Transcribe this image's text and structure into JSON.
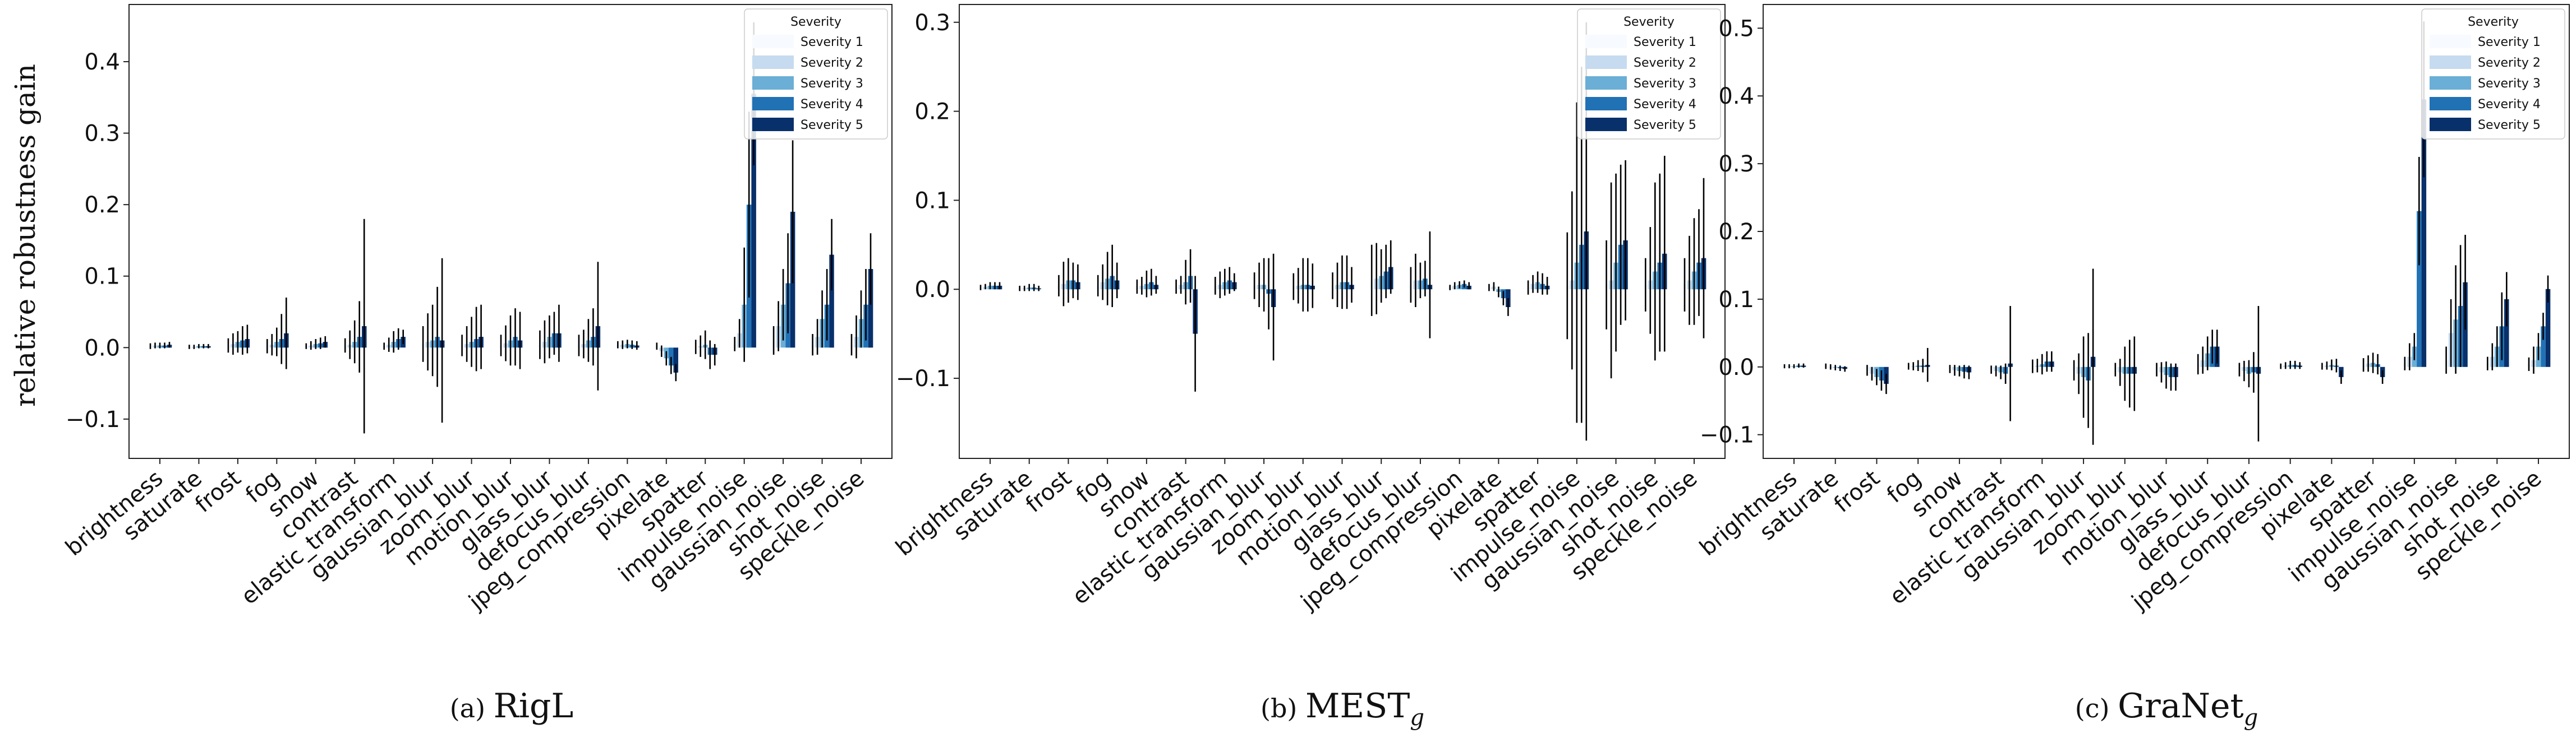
{
  "figure": {
    "ylabel": "relative robustness gain",
    "legend_title": "Severity",
    "severity_labels": [
      "Severity 1",
      "Severity 2",
      "Severity 3",
      "Severity 4",
      "Severity 5"
    ],
    "severity_colors": [
      "#f7fbff",
      "#c6dbef",
      "#6baed6",
      "#2171b5",
      "#08306b"
    ]
  },
  "chart_data": [
    {
      "type": "bar",
      "caption_prefix": "(a)",
      "caption_title": "RigL",
      "caption_sub": "",
      "ylim": [
        -0.155,
        0.48
      ],
      "yticks": [
        -0.1,
        0.0,
        0.1,
        0.2,
        0.3,
        0.4
      ],
      "ytick_labels": [
        "−0.1",
        "0.0",
        "0.1",
        "0.2",
        "0.3",
        "0.4"
      ],
      "categories": [
        "brightness",
        "saturate",
        "frost",
        "fog",
        "snow",
        "contrast",
        "elastic_transform",
        "gaussian_blur",
        "zoom_blur",
        "motion_blur",
        "glass_blur",
        "defocus_blur",
        "jpeg_compression",
        "pixelate",
        "spatter",
        "impulse_noise",
        "gaussian_noise",
        "shot_noise",
        "speckle_noise"
      ],
      "series": [
        {
          "name": "Severity 1",
          "values": [
            0.002,
            0.001,
            0.003,
            0.002,
            0.002,
            0.003,
            0.002,
            0.005,
            0.003,
            0.003,
            0.004,
            0.003,
            0.004,
            0.002,
            0.001,
            0.005,
            0.01,
            0.004,
            0.004
          ],
          "errors": [
            0.004,
            0.003,
            0.01,
            0.01,
            0.004,
            0.01,
            0.005,
            0.025,
            0.015,
            0.015,
            0.02,
            0.015,
            0.005,
            0.005,
            0.01,
            0.01,
            0.02,
            0.015,
            0.015
          ]
        },
        {
          "name": "Severity 2",
          "values": [
            0.003,
            0.001,
            0.005,
            0.004,
            0.003,
            0.004,
            0.004,
            0.008,
            0.005,
            0.006,
            0.008,
            0.005,
            0.004,
            -0.005,
            0.002,
            0.02,
            0.03,
            0.015,
            0.015
          ],
          "errors": [
            0.004,
            0.003,
            0.015,
            0.015,
            0.006,
            0.02,
            0.01,
            0.04,
            0.025,
            0.025,
            0.03,
            0.02,
            0.006,
            0.008,
            0.015,
            0.02,
            0.035,
            0.025,
            0.03
          ]
        },
        {
          "name": "Severity 3",
          "values": [
            0.003,
            0.002,
            0.008,
            0.008,
            0.005,
            0.008,
            0.008,
            0.01,
            0.008,
            0.01,
            0.015,
            0.01,
            0.005,
            -0.015,
            0.004,
            0.06,
            0.06,
            0.04,
            0.04
          ],
          "errors": [
            0.004,
            0.003,
            0.015,
            0.02,
            0.007,
            0.03,
            0.015,
            0.05,
            0.035,
            0.035,
            0.03,
            0.03,
            0.006,
            0.01,
            0.02,
            0.08,
            0.05,
            0.04,
            0.04
          ]
        },
        {
          "name": "Severity 4",
          "values": [
            0.003,
            0.002,
            0.01,
            0.012,
            0.006,
            0.015,
            0.012,
            0.015,
            0.012,
            0.015,
            0.02,
            0.015,
            0.004,
            -0.025,
            -0.01,
            0.2,
            0.09,
            0.06,
            0.06
          ],
          "errors": [
            0.004,
            0.003,
            0.02,
            0.035,
            0.008,
            0.05,
            0.015,
            0.07,
            0.045,
            0.04,
            0.03,
            0.04,
            0.006,
            0.012,
            0.02,
            0.13,
            0.07,
            0.05,
            0.05
          ]
        },
        {
          "name": "Severity 5",
          "values": [
            0.004,
            0.002,
            0.012,
            0.02,
            0.008,
            0.03,
            0.015,
            0.01,
            0.015,
            0.01,
            0.02,
            0.03,
            0.003,
            -0.035,
            -0.01,
            0.355,
            0.19,
            0.13,
            0.11
          ],
          "errors": [
            0.004,
            0.003,
            0.02,
            0.05,
            0.008,
            0.15,
            0.01,
            0.115,
            0.045,
            0.04,
            0.04,
            0.09,
            0.006,
            0.012,
            0.015,
            0.1,
            0.1,
            0.05,
            0.05
          ]
        }
      ]
    },
    {
      "type": "bar",
      "caption_prefix": "(b)",
      "caption_title": "MEST",
      "caption_sub": "g",
      "ylim": [
        -0.19,
        0.32
      ],
      "yticks": [
        -0.1,
        0.0,
        0.1,
        0.2,
        0.3
      ],
      "ytick_labels": [
        "−0.1",
        "0.0",
        "0.1",
        "0.2",
        "0.3"
      ],
      "categories": [
        "brightness",
        "saturate",
        "frost",
        "fog",
        "snow",
        "contrast",
        "elastic_transform",
        "gaussian_blur",
        "zoom_blur",
        "motion_blur",
        "glass_blur",
        "defocus_blur",
        "jpeg_compression",
        "pixelate",
        "spatter",
        "impulse_noise",
        "gaussian_noise",
        "shot_noise",
        "speckle_noise"
      ],
      "series": [
        {
          "name": "Severity 1",
          "values": [
            0.002,
            0.001,
            0.004,
            0.004,
            0.003,
            0.003,
            0.004,
            0.004,
            0.003,
            0.004,
            0.01,
            0.005,
            0.002,
            0.002,
            0.002,
            0.004,
            0.005,
            0.005,
            0.005
          ],
          "errors": [
            0.003,
            0.003,
            0.012,
            0.012,
            0.008,
            0.008,
            0.01,
            0.015,
            0.015,
            0.015,
            0.04,
            0.02,
            0.003,
            0.004,
            0.008,
            0.06,
            0.05,
            0.03,
            0.03
          ]
        },
        {
          "name": "Severity 2",
          "values": [
            0.003,
            0.001,
            0.006,
            0.008,
            0.004,
            0.005,
            0.005,
            0.005,
            0.004,
            0.005,
            0.012,
            0.01,
            0.004,
            0.003,
            0.006,
            0.01,
            0.01,
            0.01,
            0.01
          ],
          "errors": [
            0.003,
            0.003,
            0.025,
            0.02,
            0.01,
            0.01,
            0.015,
            0.025,
            0.02,
            0.025,
            0.04,
            0.03,
            0.004,
            0.005,
            0.01,
            0.1,
            0.11,
            0.06,
            0.05
          ]
        },
        {
          "name": "Severity 3",
          "values": [
            0.004,
            0.002,
            0.01,
            0.012,
            0.006,
            0.008,
            0.008,
            0.005,
            0.005,
            0.008,
            0.015,
            0.01,
            0.005,
            -0.003,
            0.008,
            0.03,
            0.03,
            0.02,
            0.02
          ],
          "errors": [
            0.004,
            0.004,
            0.025,
            0.03,
            0.015,
            0.025,
            0.015,
            0.03,
            0.03,
            0.03,
            0.03,
            0.02,
            0.004,
            0.006,
            0.012,
            0.18,
            0.1,
            0.1,
            0.06
          ]
        },
        {
          "name": "Severity 4",
          "values": [
            0.004,
            0.002,
            0.01,
            0.015,
            0.008,
            0.015,
            0.01,
            -0.005,
            0.005,
            0.008,
            0.02,
            0.012,
            0.006,
            -0.01,
            0.006,
            0.05,
            0.05,
            0.03,
            0.03
          ],
          "errors": [
            0.004,
            0.004,
            0.02,
            0.035,
            0.015,
            0.03,
            0.015,
            0.04,
            0.03,
            0.03,
            0.03,
            0.02,
            0.004,
            0.008,
            0.012,
            0.2,
            0.09,
            0.1,
            0.06
          ]
        },
        {
          "name": "Severity 5",
          "values": [
            0.004,
            0.001,
            0.008,
            0.01,
            0.005,
            -0.05,
            0.008,
            -0.02,
            0.004,
            0.005,
            0.025,
            0.005,
            0.004,
            -0.02,
            0.004,
            0.065,
            0.055,
            0.04,
            0.035
          ],
          "errors": [
            0.004,
            0.003,
            0.02,
            0.02,
            0.01,
            0.065,
            0.01,
            0.06,
            0.025,
            0.02,
            0.03,
            0.06,
            0.004,
            0.01,
            0.01,
            0.235,
            0.09,
            0.11,
            0.09
          ]
        }
      ]
    },
    {
      "type": "bar",
      "caption_prefix": "(c)",
      "caption_title": "GraNet",
      "caption_sub": "g",
      "ylim": [
        -0.135,
        0.535
      ],
      "yticks": [
        -0.1,
        0.0,
        0.1,
        0.2,
        0.3,
        0.4,
        0.5
      ],
      "ytick_labels": [
        "−0.1",
        "0.0",
        "0.1",
        "0.2",
        "0.3",
        "0.4",
        "0.5"
      ],
      "categories": [
        "brightness",
        "saturate",
        "frost",
        "fog",
        "snow",
        "contrast",
        "elastic_transform",
        "gaussian_blur",
        "zoom_blur",
        "motion_blur",
        "glass_blur",
        "defocus_blur",
        "jpeg_compression",
        "pixelate",
        "spatter",
        "impulse_noise",
        "gaussian_noise",
        "shot_noise",
        "speckle_noise"
      ],
      "series": [
        {
          "name": "Severity 1",
          "values": [
            0.001,
            0.001,
            -0.005,
            0.001,
            -0.003,
            -0.004,
            0.001,
            -0.005,
            -0.004,
            -0.004,
            0.004,
            -0.004,
            0.001,
            0.001,
            0.003,
            0.005,
            0.01,
            0.005,
            0.004
          ],
          "errors": [
            0.003,
            0.004,
            0.008,
            0.005,
            0.006,
            0.006,
            0.01,
            0.015,
            0.01,
            0.01,
            0.015,
            0.01,
            0.004,
            0.005,
            0.01,
            0.01,
            0.02,
            0.01,
            0.01
          ]
        },
        {
          "name": "Severity 2",
          "values": [
            0.001,
            0.0,
            -0.01,
            0.001,
            -0.005,
            -0.006,
            0.002,
            -0.01,
            -0.008,
            -0.008,
            0.01,
            -0.006,
            0.002,
            0.002,
            0.005,
            0.015,
            0.05,
            0.015,
            0.01
          ],
          "errors": [
            0.003,
            0.004,
            0.01,
            0.006,
            0.008,
            0.008,
            0.01,
            0.03,
            0.02,
            0.015,
            0.02,
            0.015,
            0.005,
            0.006,
            0.012,
            0.02,
            0.05,
            0.02,
            0.02
          ]
        },
        {
          "name": "Severity 3",
          "values": [
            0.001,
            -0.001,
            -0.015,
            0.002,
            -0.006,
            -0.008,
            0.004,
            -0.015,
            -0.01,
            -0.012,
            0.02,
            -0.01,
            0.003,
            0.003,
            0.006,
            0.03,
            0.07,
            0.03,
            0.03
          ],
          "errors": [
            0.003,
            0.004,
            0.012,
            0.008,
            0.008,
            0.01,
            0.015,
            0.06,
            0.04,
            0.02,
            0.025,
            0.02,
            0.006,
            0.008,
            0.015,
            0.02,
            0.08,
            0.03,
            0.02
          ]
        },
        {
          "name": "Severity 4",
          "values": [
            0.002,
            -0.002,
            -0.02,
            0.002,
            -0.007,
            -0.01,
            0.008,
            -0.02,
            -0.01,
            -0.015,
            0.03,
            -0.008,
            0.003,
            0.002,
            0.004,
            0.23,
            0.09,
            0.06,
            0.06
          ],
          "errors": [
            0.003,
            0.004,
            0.015,
            0.01,
            0.01,
            0.015,
            0.015,
            0.07,
            0.05,
            0.02,
            0.025,
            0.03,
            0.006,
            0.01,
            0.015,
            0.08,
            0.09,
            0.05,
            0.02
          ]
        },
        {
          "name": "Severity 5",
          "values": [
            0.002,
            -0.003,
            -0.025,
            0.003,
            -0.008,
            0.005,
            0.008,
            0.015,
            -0.01,
            -0.015,
            0.03,
            -0.01,
            0.002,
            -0.015,
            -0.015,
            0.395,
            0.125,
            0.1,
            0.115
          ],
          "errors": [
            0.003,
            0.004,
            0.015,
            0.025,
            0.01,
            0.085,
            0.015,
            0.13,
            0.055,
            0.02,
            0.025,
            0.1,
            0.005,
            0.01,
            0.01,
            0.115,
            0.07,
            0.04,
            0.02
          ]
        }
      ]
    }
  ]
}
